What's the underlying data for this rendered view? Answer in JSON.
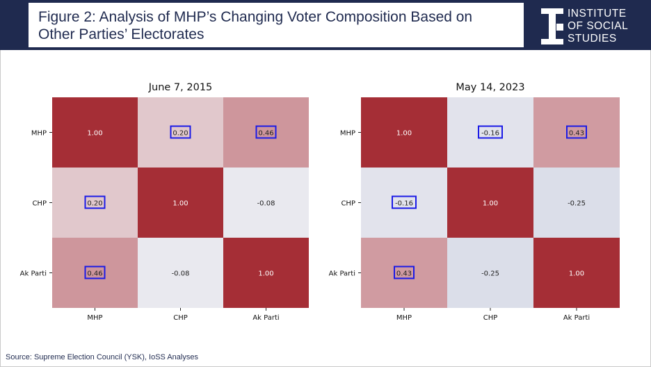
{
  "header": {
    "title_line1": "Figure 2: Analysis of MHP’s Changing Voter Composition Based on",
    "title_line2": "Other Parties’ Electorates",
    "logo_line1": "INSTITUTE",
    "logo_line2": "OF SOCIAL",
    "logo_line3": "STUDIES"
  },
  "source": "Source: Supreme Election Council (YSK), IoSS Analyses",
  "colors": {
    "header_bg": "#1f2a4f",
    "highlight_box": "#1a1ae6"
  },
  "chart_data": [
    {
      "type": "heatmap",
      "title": "June 7, 2015",
      "rows": [
        "MHP",
        "CHP",
        "Ak Parti"
      ],
      "columns": [
        "MHP",
        "CHP",
        "Ak Parti"
      ],
      "values": [
        [
          1.0,
          0.2,
          0.46
        ],
        [
          0.2,
          1.0,
          -0.08
        ],
        [
          0.46,
          -0.08,
          1.0
        ]
      ],
      "labels": [
        [
          "1.00",
          "0.20",
          "0.46"
        ],
        [
          "0.20",
          "1.00",
          "-0.08"
        ],
        [
          "0.46",
          "-0.08",
          "1.00"
        ]
      ],
      "highlighted": [
        [
          0,
          1
        ],
        [
          0,
          2
        ],
        [
          1,
          0
        ],
        [
          2,
          0
        ]
      ],
      "colormap": "diverging blue-white-red",
      "vlim": [
        -1,
        1
      ]
    },
    {
      "type": "heatmap",
      "title": "May 14, 2023",
      "rows": [
        "MHP",
        "CHP",
        "Ak Parti"
      ],
      "columns": [
        "MHP",
        "CHP",
        "Ak Parti"
      ],
      "values": [
        [
          1.0,
          -0.16,
          0.43
        ],
        [
          -0.16,
          1.0,
          -0.25
        ],
        [
          0.43,
          -0.25,
          1.0
        ]
      ],
      "labels": [
        [
          "1.00",
          "-0.16",
          "0.43"
        ],
        [
          "-0.16",
          "1.00",
          "-0.25"
        ],
        [
          "0.43",
          "-0.25",
          "1.00"
        ]
      ],
      "highlighted": [
        [
          0,
          1
        ],
        [
          0,
          2
        ],
        [
          1,
          0
        ],
        [
          2,
          0
        ]
      ],
      "colormap": "diverging blue-white-red",
      "vlim": [
        -1,
        1
      ]
    }
  ]
}
